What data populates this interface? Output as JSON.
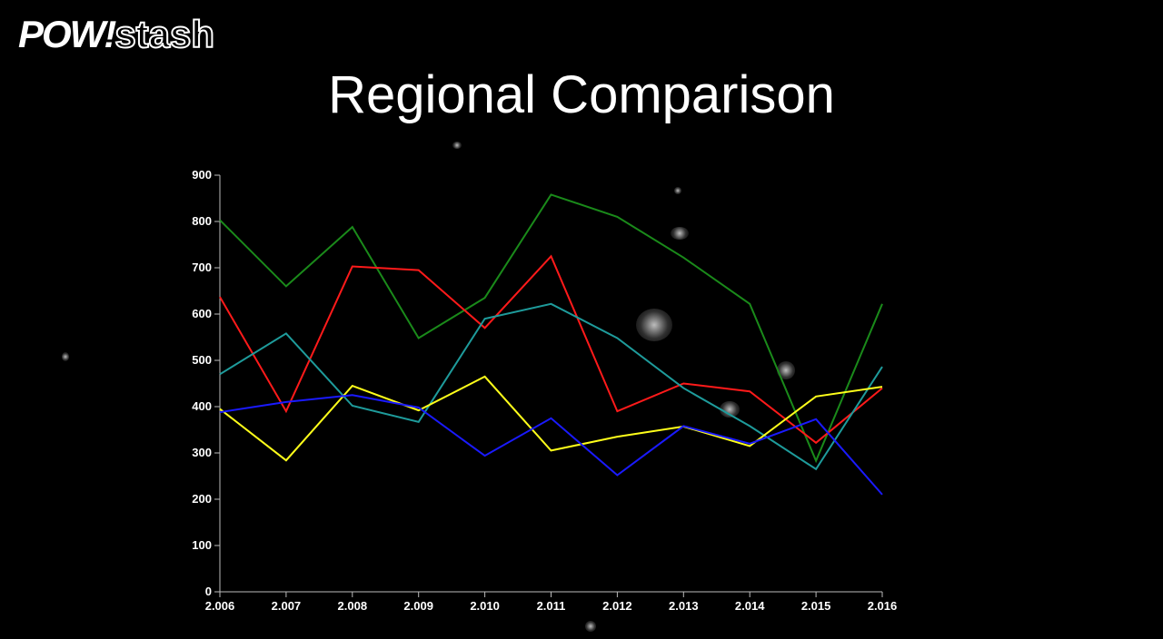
{
  "logo": {
    "pow": "POW!",
    "stash": "stash"
  },
  "title": "Regional Comparison",
  "decor": [
    {
      "name": "specks-icon",
      "icon": "dust-speck"
    }
  ],
  "chart_data": {
    "type": "line",
    "title": "Regional Comparison",
    "xlabel": "",
    "ylabel": "",
    "x": [
      "2.006",
      "2.007",
      "2.008",
      "2.009",
      "2.010",
      "2.011",
      "2.012",
      "2.013",
      "2.014",
      "2.015",
      "2.016"
    ],
    "yticks": [
      "0",
      "100",
      "200",
      "300",
      "400",
      "500",
      "600",
      "700",
      "800",
      "900"
    ],
    "ylim": [
      0,
      900
    ],
    "grid": false,
    "legend": "none",
    "series": [
      {
        "color": "#1a8a1a",
        "values": [
          803,
          660,
          788,
          548,
          635,
          858,
          810,
          722,
          622,
          283,
          622
        ]
      },
      {
        "color": "#ff1a1a",
        "values": [
          637,
          390,
          703,
          695,
          570,
          725,
          390,
          450,
          433,
          322,
          440
        ]
      },
      {
        "color": "#1e9b9b",
        "values": [
          470,
          558,
          402,
          367,
          590,
          622,
          548,
          440,
          358,
          265,
          486
        ]
      },
      {
        "color": "#ffff1a",
        "values": [
          395,
          284,
          445,
          392,
          465,
          305,
          335,
          357,
          315,
          422,
          443
        ]
      },
      {
        "color": "#1a1aff",
        "values": [
          388,
          410,
          425,
          398,
          294,
          375,
          252,
          358,
          320,
          373,
          210
        ]
      }
    ]
  }
}
